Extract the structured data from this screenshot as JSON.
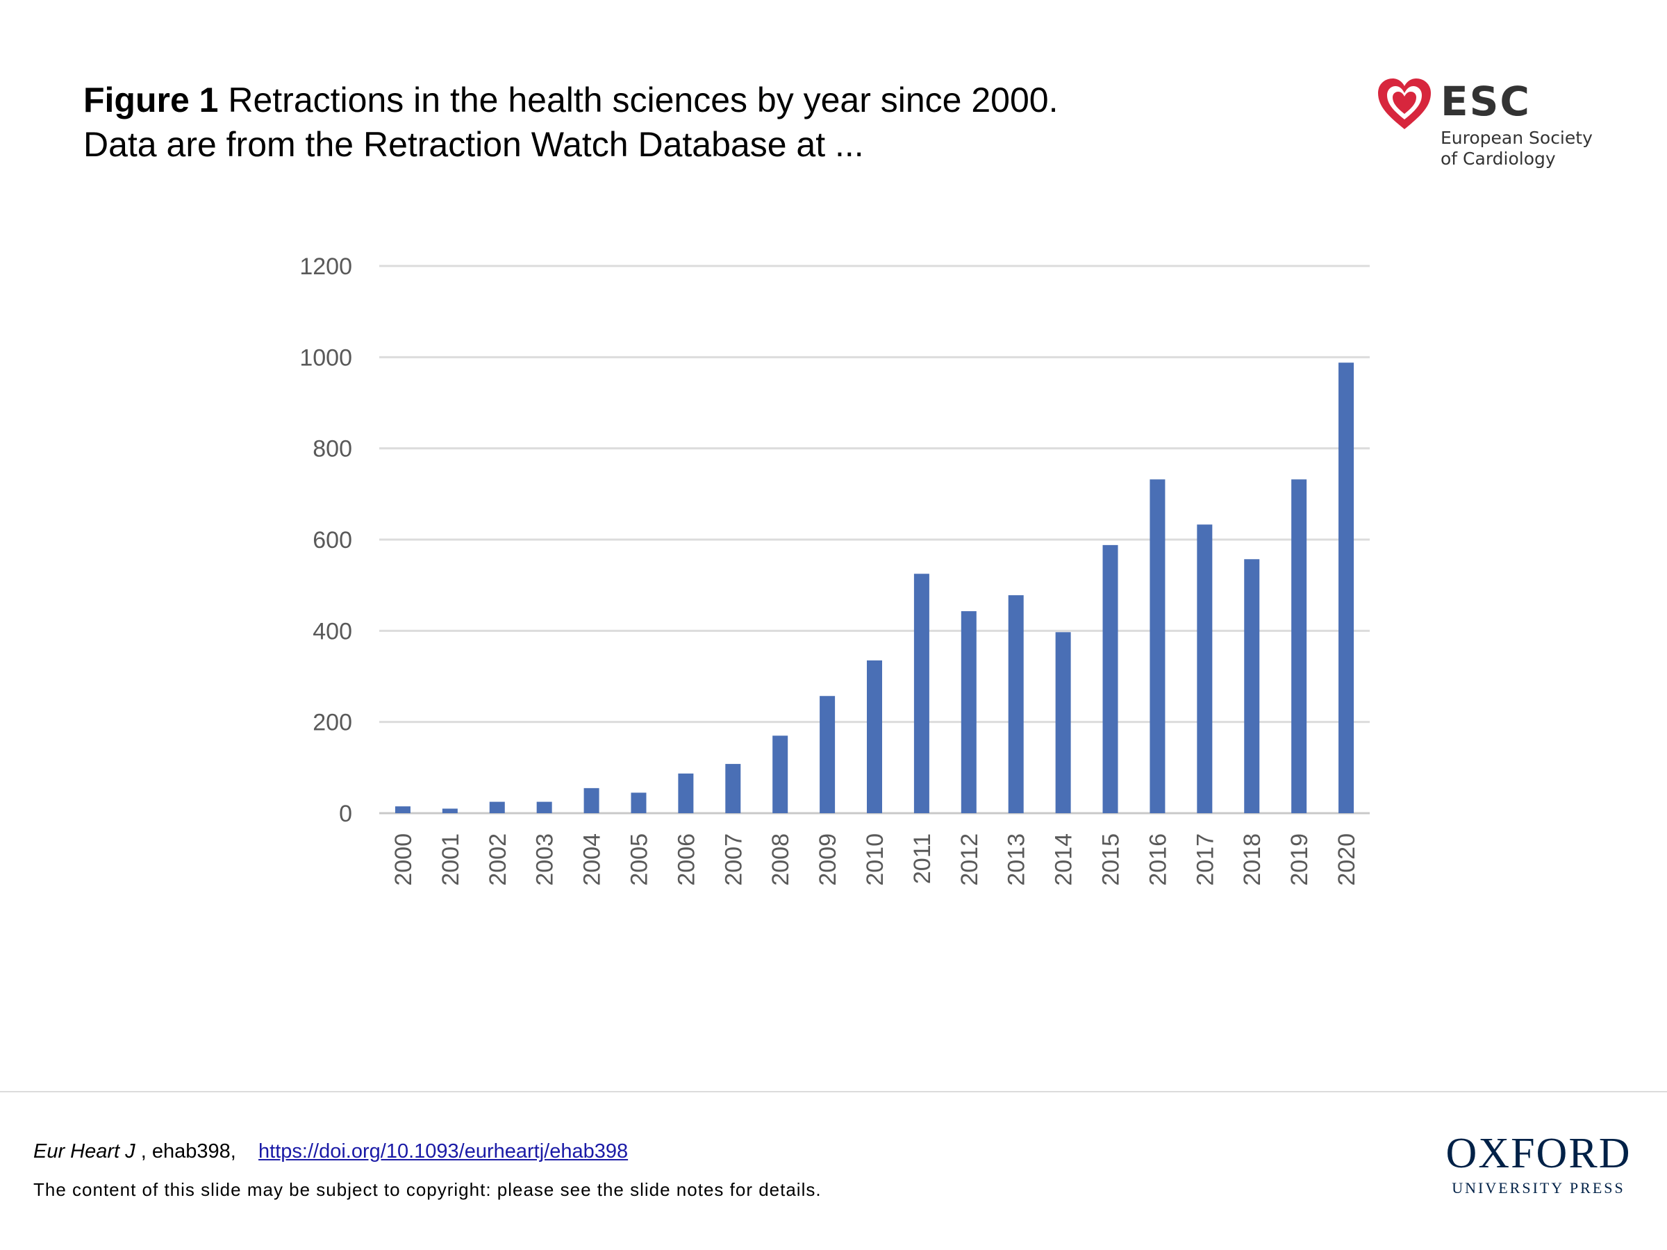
{
  "caption": {
    "label": "Figure 1",
    "line1": " Retractions in the health sciences by year since 2000.",
    "line2": "Data are from the Retraction Watch Database at ..."
  },
  "esc_logo": {
    "name": "ESC",
    "subtitle_line1": "European Society",
    "subtitle_line2": "of Cardiology",
    "heart_color": "#d7263d"
  },
  "chart_data": {
    "type": "bar",
    "categories": [
      "2000",
      "2001",
      "2002",
      "2003",
      "2004",
      "2005",
      "2006",
      "2007",
      "2008",
      "2009",
      "2010",
      "2011",
      "2012",
      "2013",
      "2014",
      "2015",
      "2016",
      "2017",
      "2018",
      "2019",
      "2020"
    ],
    "values": [
      15,
      10,
      25,
      25,
      55,
      45,
      87,
      108,
      170,
      257,
      335,
      525,
      443,
      478,
      397,
      588,
      732,
      633,
      557,
      732,
      988
    ],
    "title": "",
    "xlabel": "",
    "ylabel": "",
    "ylim": [
      0,
      1200
    ],
    "yticks": [
      "0",
      "200",
      "400",
      "600",
      "800",
      "1000",
      "1200"
    ],
    "grid": true,
    "bar_color": "#4a6fb5"
  },
  "footer": {
    "journal": "Eur Heart J",
    "article": " , ehab398,",
    "doi_link": "https://doi.org/10.1093/eurheartj/ehab398",
    "copyright": "The content of this slide may be subject to copyright: please see the slide notes for details."
  },
  "oup_logo": {
    "main": "OXFORD",
    "sub": "UNIVERSITY PRESS"
  }
}
